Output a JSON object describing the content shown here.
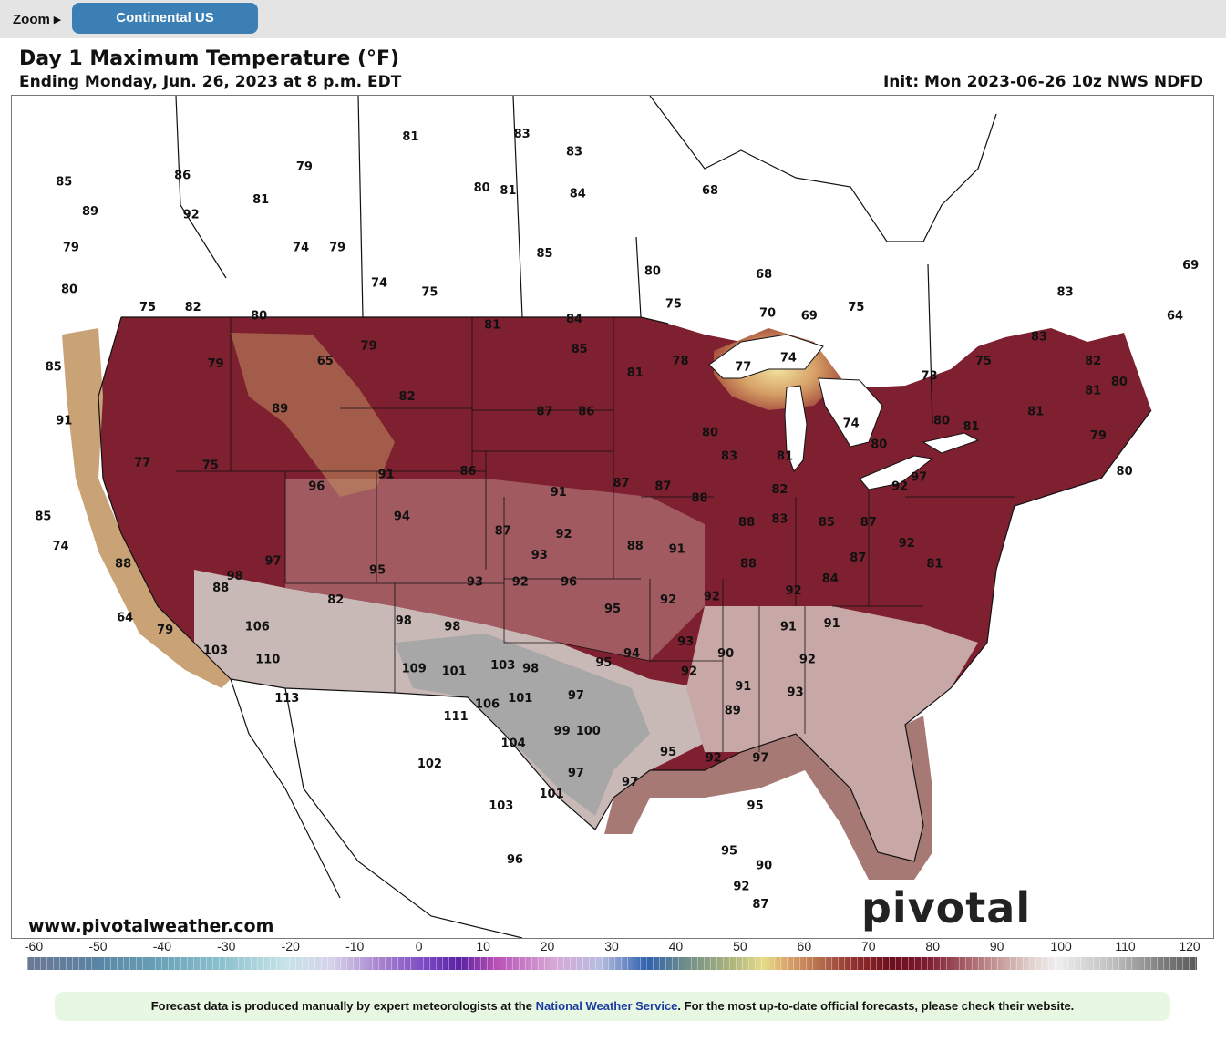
{
  "toolbar": {
    "zoom_label": "Zoom ▸",
    "region_button": "Continental US"
  },
  "header": {
    "title": "Day 1 Maximum Temperature (°F)",
    "subtitle": "Ending Monday, Jun. 26, 2023 at 8 p.m. EDT",
    "init": "Init: Mon 2023-06-26 10z NWS NDFD"
  },
  "map": {
    "website": "www.pivotalweather.com",
    "brand": "pivotal weather",
    "temperature_labels": [
      {
        "value": "85",
        "lon": -124.0,
        "lat": 47.2
      },
      {
        "value": "89",
        "lon": -122.5,
        "lat": 46.2
      },
      {
        "value": "86",
        "lon": -117.2,
        "lat": 47.4
      },
      {
        "value": "92",
        "lon": -116.7,
        "lat": 46.1
      },
      {
        "value": "79",
        "lon": -123.6,
        "lat": 45.0
      },
      {
        "value": "81",
        "lon": -112.7,
        "lat": 46.6
      },
      {
        "value": "79",
        "lon": -110.2,
        "lat": 47.7
      },
      {
        "value": "74",
        "lon": -110.4,
        "lat": 45.0
      },
      {
        "value": "79",
        "lon": -108.3,
        "lat": 45.0
      },
      {
        "value": "81",
        "lon": -104.1,
        "lat": 48.7
      },
      {
        "value": "83",
        "lon": -97.7,
        "lat": 48.8
      },
      {
        "value": "80",
        "lon": -100.0,
        "lat": 47.0
      },
      {
        "value": "81",
        "lon": -98.5,
        "lat": 46.9
      },
      {
        "value": "83",
        "lon": -94.7,
        "lat": 48.2
      },
      {
        "value": "84",
        "lon": -94.5,
        "lat": 46.8
      },
      {
        "value": "85",
        "lon": -96.4,
        "lat": 44.8
      },
      {
        "value": "80",
        "lon": -123.7,
        "lat": 43.6
      },
      {
        "value": "75",
        "lon": -119.2,
        "lat": 43.0
      },
      {
        "value": "82",
        "lon": -116.6,
        "lat": 43.0
      },
      {
        "value": "80",
        "lon": -112.8,
        "lat": 42.7
      },
      {
        "value": "74",
        "lon": -105.9,
        "lat": 43.8
      },
      {
        "value": "75",
        "lon": -103.0,
        "lat": 43.5
      },
      {
        "value": "79",
        "lon": -106.5,
        "lat": 41.7
      },
      {
        "value": "65",
        "lon": -109.0,
        "lat": 41.2
      },
      {
        "value": "85",
        "lon": -124.6,
        "lat": 41.0
      },
      {
        "value": "79",
        "lon": -115.3,
        "lat": 41.1
      },
      {
        "value": "81",
        "lon": -99.4,
        "lat": 42.4
      },
      {
        "value": "84",
        "lon": -94.7,
        "lat": 42.6
      },
      {
        "value": "85",
        "lon": -94.4,
        "lat": 41.6
      },
      {
        "value": "81",
        "lon": -91.2,
        "lat": 40.8
      },
      {
        "value": "78",
        "lon": -88.6,
        "lat": 41.2
      },
      {
        "value": "80",
        "lon": -90.2,
        "lat": 44.2
      },
      {
        "value": "75",
        "lon": -89.0,
        "lat": 43.1
      },
      {
        "value": "68",
        "lon": -86.9,
        "lat": 46.9
      },
      {
        "value": "68",
        "lon": -83.8,
        "lat": 44.1
      },
      {
        "value": "70",
        "lon": -83.6,
        "lat": 42.8
      },
      {
        "value": "69",
        "lon": -81.2,
        "lat": 42.7
      },
      {
        "value": "75",
        "lon": -78.5,
        "lat": 43.0
      },
      {
        "value": "74",
        "lon": -82.4,
        "lat": 41.3
      },
      {
        "value": "77",
        "lon": -85.0,
        "lat": 41.0
      },
      {
        "value": "91",
        "lon": -124.0,
        "lat": 39.2
      },
      {
        "value": "89",
        "lon": -111.6,
        "lat": 39.6
      },
      {
        "value": "82",
        "lon": -104.3,
        "lat": 40.0
      },
      {
        "value": "77",
        "lon": -119.5,
        "lat": 37.8
      },
      {
        "value": "75",
        "lon": -115.6,
        "lat": 37.7
      },
      {
        "value": "87",
        "lon": -96.4,
        "lat": 39.5
      },
      {
        "value": "86",
        "lon": -94.0,
        "lat": 39.5
      },
      {
        "value": "80",
        "lon": -86.9,
        "lat": 38.8
      },
      {
        "value": "83",
        "lon": -85.8,
        "lat": 38.0
      },
      {
        "value": "81",
        "lon": -82.6,
        "lat": 38.0
      },
      {
        "value": "74",
        "lon": -78.8,
        "lat": 39.1
      },
      {
        "value": "80",
        "lon": -77.2,
        "lat": 38.4
      },
      {
        "value": "80",
        "lon": -73.6,
        "lat": 39.2
      },
      {
        "value": "81",
        "lon": -71.9,
        "lat": 39.0
      },
      {
        "value": "81",
        "lon": -68.2,
        "lat": 39.5
      },
      {
        "value": "73",
        "lon": -74.3,
        "lat": 40.7
      },
      {
        "value": "75",
        "lon": -71.2,
        "lat": 41.2
      },
      {
        "value": "83",
        "lon": -66.5,
        "lat": 43.5
      },
      {
        "value": "83",
        "lon": -68.0,
        "lat": 42.0
      },
      {
        "value": "82",
        "lon": -64.9,
        "lat": 41.2
      },
      {
        "value": "81",
        "lon": -64.9,
        "lat": 40.2
      },
      {
        "value": "80",
        "lon": -63.4,
        "lat": 40.5
      },
      {
        "value": "79",
        "lon": -64.6,
        "lat": 38.7
      },
      {
        "value": "80",
        "lon": -63.1,
        "lat": 37.5
      },
      {
        "value": "69",
        "lon": -59.3,
        "lat": 44.4
      },
      {
        "value": "64",
        "lon": -60.2,
        "lat": 42.7
      },
      {
        "value": "85",
        "lon": -125.2,
        "lat": 36.0
      },
      {
        "value": "74",
        "lon": -124.2,
        "lat": 35.0
      },
      {
        "value": "88",
        "lon": -120.6,
        "lat": 34.4
      },
      {
        "value": "96",
        "lon": -109.5,
        "lat": 37.0
      },
      {
        "value": "91",
        "lon": -105.5,
        "lat": 37.4
      },
      {
        "value": "94",
        "lon": -104.6,
        "lat": 36.0
      },
      {
        "value": "86",
        "lon": -100.8,
        "lat": 37.5
      },
      {
        "value": "91",
        "lon": -95.6,
        "lat": 36.8
      },
      {
        "value": "92",
        "lon": -95.3,
        "lat": 35.4
      },
      {
        "value": "87",
        "lon": -98.8,
        "lat": 35.5
      },
      {
        "value": "87",
        "lon": -92.0,
        "lat": 37.1
      },
      {
        "value": "87",
        "lon": -89.6,
        "lat": 37.0
      },
      {
        "value": "88",
        "lon": -87.5,
        "lat": 36.6
      },
      {
        "value": "88",
        "lon": -84.8,
        "lat": 35.8
      },
      {
        "value": "83",
        "lon": -82.9,
        "lat": 35.9
      },
      {
        "value": "82",
        "lon": -82.9,
        "lat": 36.9
      },
      {
        "value": "85",
        "lon": -80.2,
        "lat": 35.8
      },
      {
        "value": "87",
        "lon": -77.8,
        "lat": 35.8
      },
      {
        "value": "87",
        "lon": -78.4,
        "lat": 34.6
      },
      {
        "value": "92",
        "lon": -75.6,
        "lat": 35.1
      },
      {
        "value": "92",
        "lon": -76.0,
        "lat": 37.0
      },
      {
        "value": "97",
        "lon": -74.9,
        "lat": 37.3
      },
      {
        "value": "81",
        "lon": -74.0,
        "lat": 34.4
      },
      {
        "value": "88",
        "lon": -91.2,
        "lat": 35.0
      },
      {
        "value": "91",
        "lon": -88.8,
        "lat": 34.9
      },
      {
        "value": "84",
        "lon": -80.0,
        "lat": 33.9
      },
      {
        "value": "88",
        "lon": -115.0,
        "lat": 33.6
      },
      {
        "value": "98",
        "lon": -114.2,
        "lat": 34.0
      },
      {
        "value": "97",
        "lon": -112.0,
        "lat": 34.5
      },
      {
        "value": "64",
        "lon": -120.5,
        "lat": 32.6
      },
      {
        "value": "79",
        "lon": -118.2,
        "lat": 32.2
      },
      {
        "value": "103",
        "lon": -115.3,
        "lat": 31.5
      },
      {
        "value": "106",
        "lon": -112.9,
        "lat": 32.3
      },
      {
        "value": "82",
        "lon": -108.4,
        "lat": 33.2
      },
      {
        "value": "95",
        "lon": -106.0,
        "lat": 34.2
      },
      {
        "value": "98",
        "lon": -104.5,
        "lat": 32.5
      },
      {
        "value": "98",
        "lon": -101.7,
        "lat": 32.3
      },
      {
        "value": "93",
        "lon": -100.4,
        "lat": 33.8
      },
      {
        "value": "92",
        "lon": -97.8,
        "lat": 33.8
      },
      {
        "value": "93",
        "lon": -96.7,
        "lat": 34.7
      },
      {
        "value": "96",
        "lon": -95.0,
        "lat": 33.8
      },
      {
        "value": "95",
        "lon": -92.5,
        "lat": 32.9
      },
      {
        "value": "92",
        "lon": -89.3,
        "lat": 33.2
      },
      {
        "value": "92",
        "lon": -86.8,
        "lat": 33.3
      },
      {
        "value": "88",
        "lon": -84.7,
        "lat": 34.4
      },
      {
        "value": "92",
        "lon": -82.1,
        "lat": 33.5
      },
      {
        "value": "91",
        "lon": -82.4,
        "lat": 32.3
      },
      {
        "value": "91",
        "lon": -79.9,
        "lat": 32.4
      },
      {
        "value": "92",
        "lon": -81.3,
        "lat": 31.2
      },
      {
        "value": "93",
        "lon": -82.0,
        "lat": 30.1
      },
      {
        "value": "110",
        "lon": -112.3,
        "lat": 31.2
      },
      {
        "value": "113",
        "lon": -111.2,
        "lat": 29.9
      },
      {
        "value": "109",
        "lon": -103.9,
        "lat": 30.9
      },
      {
        "value": "101",
        "lon": -101.6,
        "lat": 30.8
      },
      {
        "value": "103",
        "lon": -98.8,
        "lat": 31.0
      },
      {
        "value": "98",
        "lon": -97.2,
        "lat": 30.9
      },
      {
        "value": "101",
        "lon": -97.8,
        "lat": 29.9
      },
      {
        "value": "94",
        "lon": -91.4,
        "lat": 31.4
      },
      {
        "value": "93",
        "lon": -88.3,
        "lat": 31.8
      },
      {
        "value": "90",
        "lon": -86.0,
        "lat": 31.4
      },
      {
        "value": "92",
        "lon": -88.1,
        "lat": 30.8
      },
      {
        "value": "91",
        "lon": -85.0,
        "lat": 30.3
      },
      {
        "value": "95",
        "lon": -93.0,
        "lat": 31.1
      },
      {
        "value": "97",
        "lon": -94.6,
        "lat": 30.0
      },
      {
        "value": "111",
        "lon": -101.5,
        "lat": 29.3
      },
      {
        "value": "106",
        "lon": -99.7,
        "lat": 29.7
      },
      {
        "value": "89",
        "lon": -85.6,
        "lat": 29.5
      },
      {
        "value": "104",
        "lon": -98.2,
        "lat": 28.4
      },
      {
        "value": "99",
        "lon": -95.4,
        "lat": 28.8
      },
      {
        "value": "100",
        "lon": -93.9,
        "lat": 28.8
      },
      {
        "value": "102",
        "lon": -103.0,
        "lat": 27.7
      },
      {
        "value": "95",
        "lon": -89.3,
        "lat": 28.1
      },
      {
        "value": "92",
        "lon": -86.7,
        "lat": 27.9
      },
      {
        "value": "97",
        "lon": -84.0,
        "lat": 27.9
      },
      {
        "value": "97",
        "lon": -94.6,
        "lat": 27.4
      },
      {
        "value": "97",
        "lon": -91.5,
        "lat": 27.1
      },
      {
        "value": "101",
        "lon": -96.0,
        "lat": 26.7
      },
      {
        "value": "103",
        "lon": -98.9,
        "lat": 26.3
      },
      {
        "value": "95",
        "lon": -84.3,
        "lat": 26.3
      },
      {
        "value": "95",
        "lon": -85.8,
        "lat": 24.8
      },
      {
        "value": "90",
        "lon": -83.8,
        "lat": 24.3
      },
      {
        "value": "92",
        "lon": -85.1,
        "lat": 23.6
      },
      {
        "value": "87",
        "lon": -84.0,
        "lat": 23.0
      },
      {
        "value": "96",
        "lon": -98.1,
        "lat": 24.5
      }
    ]
  },
  "colorbar": {
    "ticks": [
      "-60",
      "-50",
      "-40",
      "-30",
      "-20",
      "-10",
      "0",
      "10",
      "20",
      "30",
      "40",
      "50",
      "60",
      "70",
      "80",
      "90",
      "100",
      "110",
      "120"
    ]
  },
  "footer": {
    "text_before": "Forecast data is produced manually by expert meteorologists at the ",
    "link_text": "National Weather Service",
    "text_after": ". For the most up-to-date official forecasts, please check their website."
  },
  "colors": {
    "accent_button": "#3b7fb4",
    "footer_bg": "#e8f7e2",
    "link": "#1a3aa0",
    "hot_red": "#8e2a2c",
    "very_hot_gray": "#bdbdbd"
  }
}
